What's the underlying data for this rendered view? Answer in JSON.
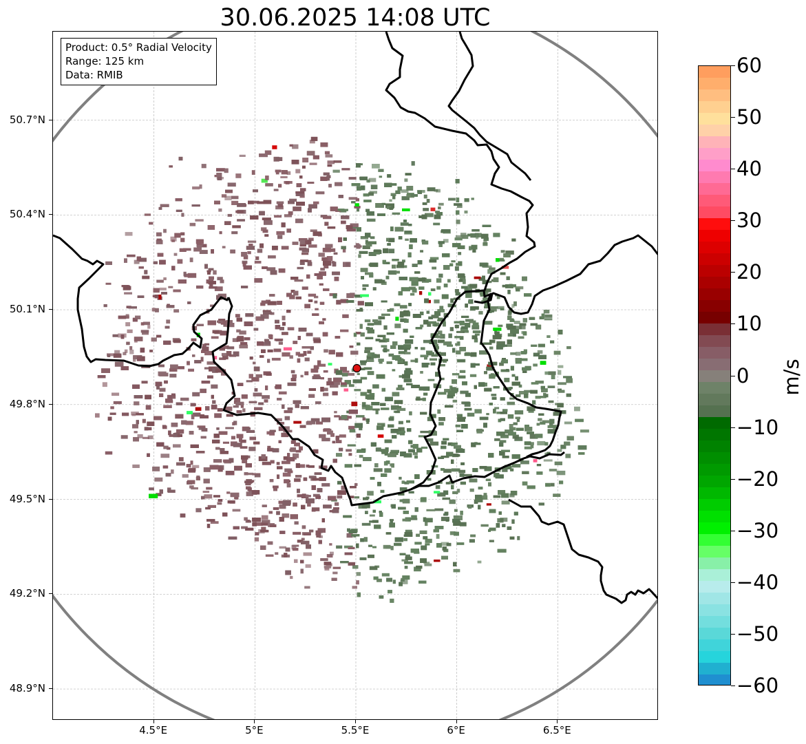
{
  "title": "30.06.2025 14:08 UTC",
  "info": {
    "product": "Product: 0.5° Radial Velocity",
    "range": "Range: 125 km",
    "data": "Data: RMIB"
  },
  "map": {
    "lon_range": [
      4.0,
      7.0
    ],
    "lat_range": [
      48.8,
      50.98
    ],
    "lat_ticks": [
      "50.7°N",
      "50.4°N",
      "50.1°N",
      "49.8°N",
      "49.5°N",
      "49.2°N",
      "48.9°N"
    ],
    "lat_tick_values": [
      50.7,
      50.4,
      50.1,
      49.8,
      49.5,
      49.2,
      48.9
    ],
    "lon_ticks": [
      "4.5°E",
      "5°E",
      "5.5°E",
      "6°E",
      "6.5°E"
    ],
    "lon_tick_values": [
      4.5,
      5.0,
      5.5,
      6.0,
      6.5
    ],
    "radar_site": {
      "lon": 5.505,
      "lat": 49.915
    },
    "range_ring_color": "#808080",
    "site_color": "#dd1111",
    "approaching_color": "#5e7a5a",
    "receding_color": "#8a5f66"
  },
  "colorbar": {
    "unit": "m/s",
    "min": -60,
    "max": 60,
    "tick_labels": [
      "60",
      "50",
      "40",
      "30",
      "20",
      "10",
      "0",
      "−10",
      "−20",
      "−30",
      "−40",
      "−50",
      "−60"
    ],
    "tick_values": [
      60,
      50,
      40,
      30,
      20,
      10,
      0,
      -10,
      -20,
      -30,
      -40,
      -50,
      -60
    ],
    "colors_top_to_bottom": [
      "#ff9e5e",
      "#ffae6c",
      "#ffbe80",
      "#ffd090",
      "#ffe09c",
      "#ffd1a8",
      "#ffb3b8",
      "#ff9fc8",
      "#ff8bce",
      "#ff7ab0",
      "#ff6a94",
      "#ff5a78",
      "#ff4b63",
      "#ff0d0d",
      "#ee0000",
      "#dd0000",
      "#cc0000",
      "#bb0000",
      "#aa0000",
      "#990000",
      "#880000",
      "#770000",
      "#7a2f35",
      "#824a52",
      "#875d66",
      "#886d73",
      "#86807a",
      "#6e8268",
      "#62795c",
      "#557150",
      "#006a00",
      "#007600",
      "#008200",
      "#008e00",
      "#009a00",
      "#00a600",
      "#00b800",
      "#00cc00",
      "#00e000",
      "#00f000",
      "#33ff33",
      "#66ff66",
      "#88f0a8",
      "#aaf0d8",
      "#b8ecec",
      "#a0e6e6",
      "#8ae2e2",
      "#73dede",
      "#5ad8d8",
      "#40d4da",
      "#26d4dc",
      "#20b0d0",
      "#1f8fd0"
    ]
  }
}
